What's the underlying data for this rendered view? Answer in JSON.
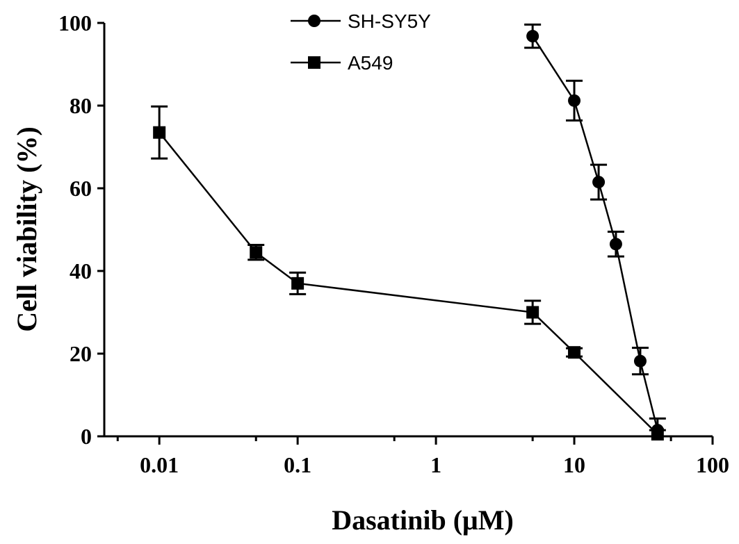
{
  "chart_data": {
    "type": "line",
    "xlabel": "Dasatinib (μM)",
    "ylabel": "Cell viability (%)",
    "x_scale": "log",
    "xlim": [
      0.004,
      100
    ],
    "ylim": [
      0,
      100
    ],
    "x_ticks": [
      0.01,
      0.1,
      1,
      10,
      100
    ],
    "x_tick_labels": [
      "0.01",
      "0.1",
      "1",
      "10",
      "100"
    ],
    "y_ticks": [
      0,
      20,
      40,
      60,
      80,
      100
    ],
    "y_tick_labels": [
      "0",
      "20",
      "40",
      "60",
      "80",
      "100"
    ],
    "grid": false,
    "legend_position": "top-center",
    "series": [
      {
        "name": "SH-SY5Y",
        "marker": "circle",
        "color": "#000000",
        "points": [
          {
            "x": 5,
            "y": 96.8,
            "err": 2.8
          },
          {
            "x": 10,
            "y": 81.2,
            "err": 4.8
          },
          {
            "x": 15,
            "y": 61.5,
            "err": 4.2
          },
          {
            "x": 20,
            "y": 46.5,
            "err": 3.0
          },
          {
            "x": 30,
            "y": 18.2,
            "err": 3.2
          },
          {
            "x": 40,
            "y": 1.5,
            "err": 2.8
          }
        ]
      },
      {
        "name": "A549",
        "marker": "square",
        "color": "#000000",
        "points": [
          {
            "x": 0.01,
            "y": 73.5,
            "err": 6.3
          },
          {
            "x": 0.05,
            "y": 44.5,
            "err": 1.8
          },
          {
            "x": 0.1,
            "y": 37.0,
            "err": 2.6
          },
          {
            "x": 5,
            "y": 30.0,
            "err": 2.8
          },
          {
            "x": 10,
            "y": 20.3,
            "err": 1.0
          },
          {
            "x": 40,
            "y": 0.5,
            "err": 1.0
          }
        ]
      }
    ]
  }
}
